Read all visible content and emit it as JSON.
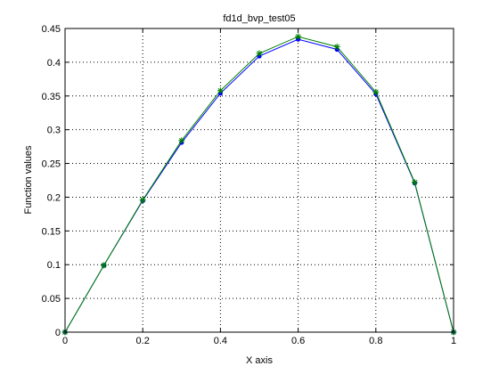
{
  "chart_data": {
    "type": "line",
    "title": "fd1d_bvp_test05",
    "xlabel": "X axis",
    "ylabel": "Function values",
    "xlim": [
      0,
      1
    ],
    "ylim": [
      0,
      0.45
    ],
    "xticks": [
      0,
      0.2,
      0.4,
      0.6,
      0.8,
      1
    ],
    "xtick_labels": [
      "0",
      "0.2",
      "0.4",
      "0.6",
      "0.8",
      "1"
    ],
    "yticks": [
      0,
      0.05,
      0.1,
      0.15,
      0.2,
      0.25,
      0.3,
      0.35,
      0.4,
      0.45
    ],
    "ytick_labels": [
      "0",
      "0.05",
      "0.1",
      "0.15",
      "0.2",
      "0.25",
      "0.3",
      "0.35",
      "0.4",
      "0.45"
    ],
    "grid": true,
    "x": [
      0,
      0.1,
      0.2,
      0.3,
      0.4,
      0.5,
      0.6,
      0.7,
      0.8,
      0.9,
      1.0
    ],
    "series": [
      {
        "values": [
          0,
          0.099,
          0.195,
          0.281,
          0.354,
          0.409,
          0.434,
          0.419,
          0.353,
          0.221,
          0
        ],
        "color": "#0000ff",
        "marker": "dot"
      },
      {
        "values": [
          0,
          0.099,
          0.196,
          0.284,
          0.358,
          0.413,
          0.438,
          0.423,
          0.356,
          0.222,
          0
        ],
        "color": "#008000",
        "marker": "asterisk"
      }
    ]
  }
}
